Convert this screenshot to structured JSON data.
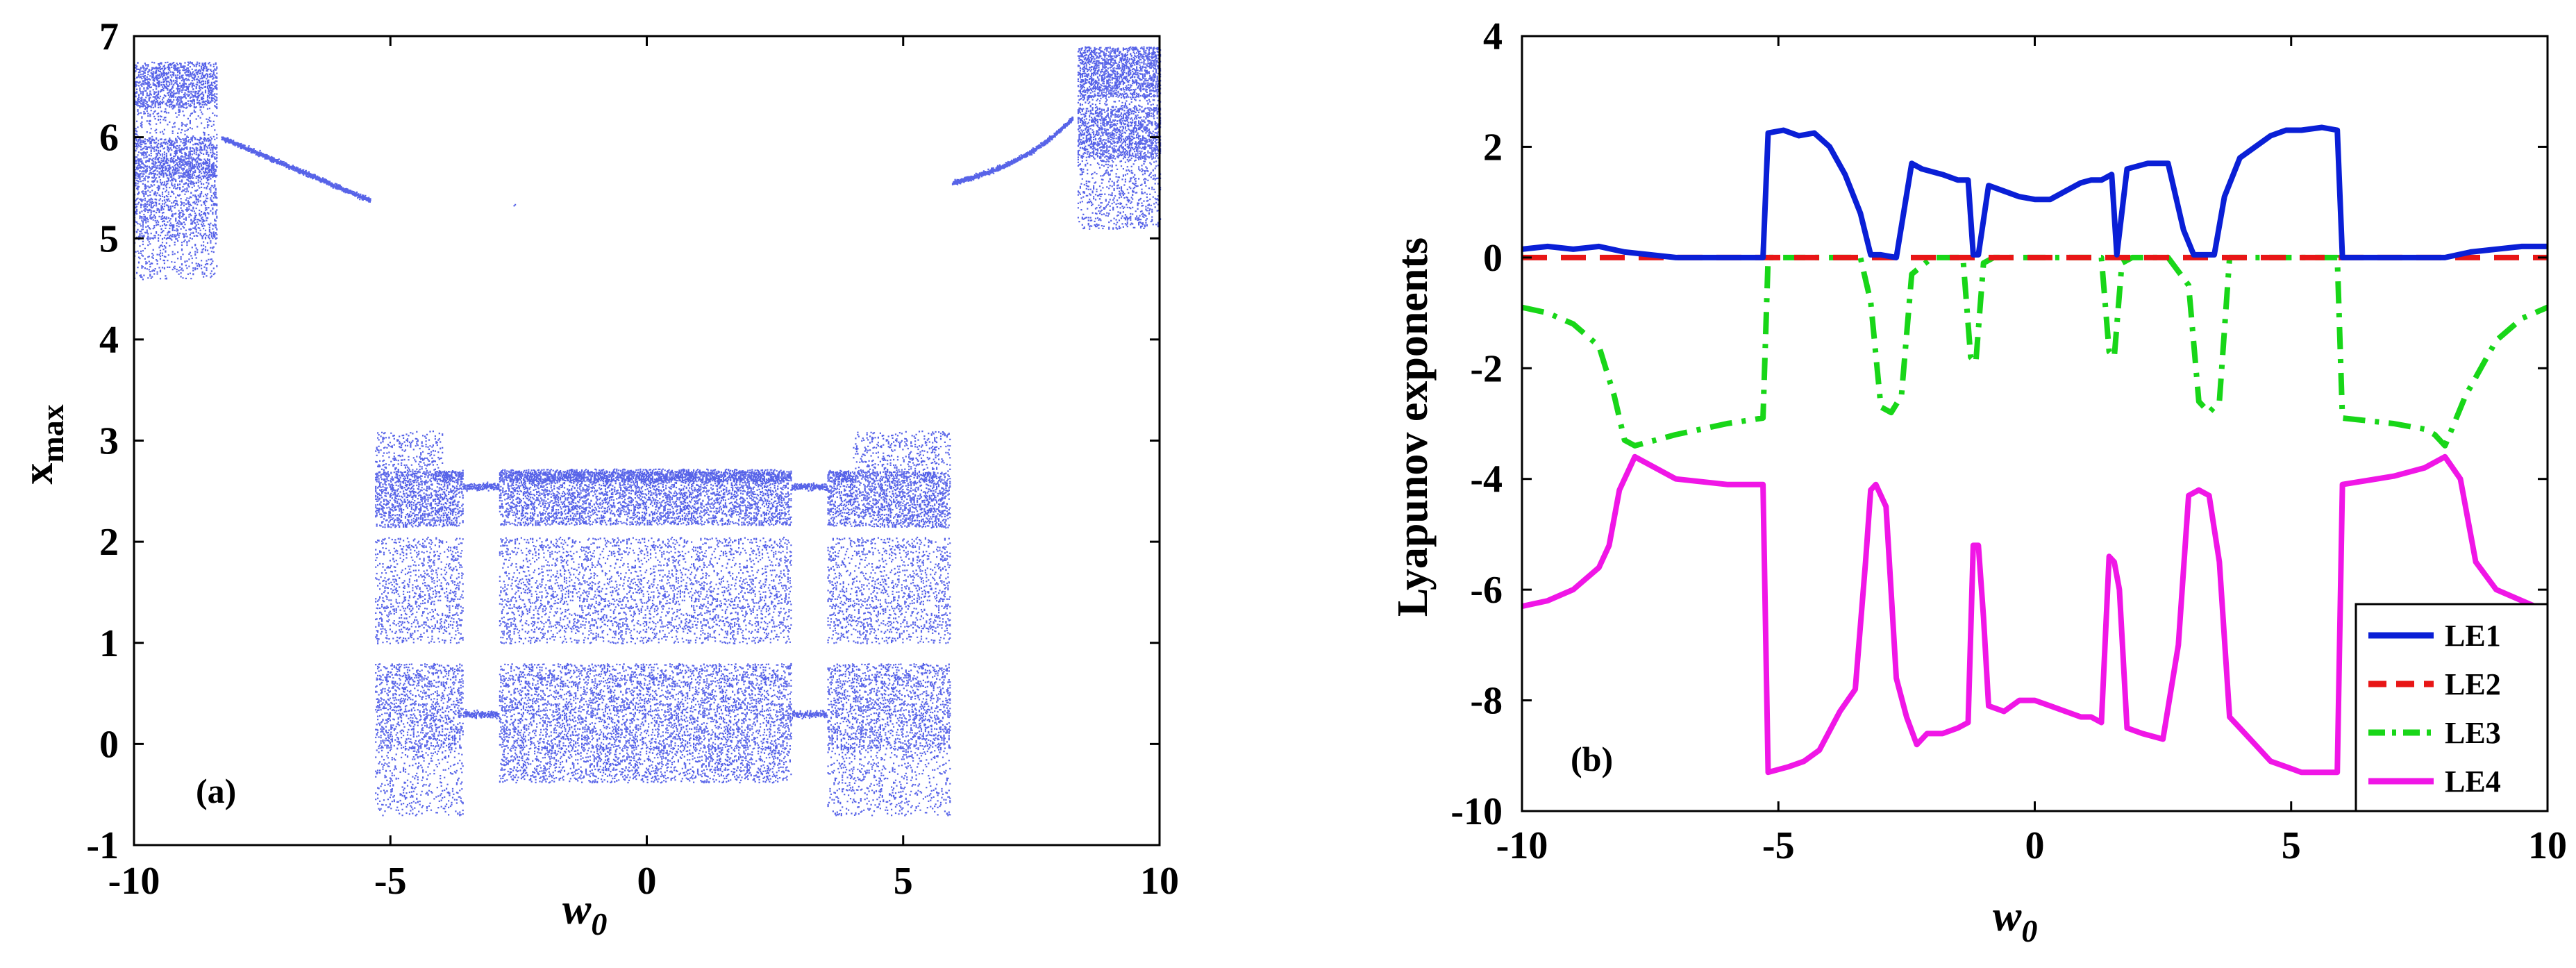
{
  "chart_data": [
    {
      "type": "scatter",
      "panel_label": "(a)",
      "title": "",
      "xlabel": "w",
      "xlabel_sub": "0",
      "ylabel": "x",
      "ylabel_sub": "max",
      "xlim": [
        -10,
        10
      ],
      "ylim": [
        -1,
        7
      ],
      "xticks": [
        -10,
        -5,
        0,
        5,
        10
      ],
      "yticks": [
        -1,
        0,
        1,
        2,
        3,
        4,
        5,
        6,
        7
      ],
      "xtick_labels": [
        "-10",
        "-5",
        "0",
        "5",
        "10"
      ],
      "ytick_labels": [
        "-1",
        "0",
        "1",
        "2",
        "3",
        "4",
        "5",
        "6",
        "7"
      ],
      "grid": false,
      "point_color": "#1f2fe0",
      "description_series": [
        {
          "name": "chaotic band left",
          "x_range": [
            -10,
            -8.4
          ],
          "y_range": [
            4.5,
            6.8
          ]
        },
        {
          "name": "periodic branch left",
          "x_range": [
            -8.2,
            -5.4
          ],
          "y_start": 6.0,
          "y_end": 5.4
        },
        {
          "name": "chaotic band right",
          "x_range": [
            8.4,
            10
          ],
          "y_range": [
            5.0,
            6.9
          ]
        },
        {
          "name": "periodic branch right",
          "x_range": [
            5.9,
            8.2
          ],
          "y_start": 5.55,
          "y_end": 6.1
        },
        {
          "name": "central bands",
          "x_range": [
            -5.3,
            5.9
          ],
          "y_range": [
            -0.7,
            3.1
          ]
        }
      ]
    },
    {
      "type": "line",
      "panel_label": "(b)",
      "title": "",
      "xlabel": "w",
      "xlabel_sub": "0",
      "ylabel": "Lyapunov exponents",
      "xlim": [
        -10,
        10
      ],
      "ylim": [
        -10,
        4
      ],
      "xticks": [
        -10,
        -5,
        0,
        5,
        10
      ],
      "yticks": [
        -10,
        -8,
        -6,
        -4,
        -2,
        0,
        2,
        4
      ],
      "xtick_labels": [
        "-10",
        "-5",
        "0",
        "5",
        "10"
      ],
      "ytick_labels": [
        "-10",
        "-8",
        "-6",
        "-4",
        "-2",
        "0",
        "2",
        "4"
      ],
      "grid": false,
      "legend_position": "bottom-right",
      "series": [
        {
          "name": "LE1",
          "color": "#0a1fd6",
          "style": "solid",
          "x": [
            -10,
            -9.5,
            -9,
            -8.5,
            -8,
            -7.5,
            -7,
            -6,
            -5.3,
            -5.2,
            -4.9,
            -4.6,
            -4.3,
            -4.0,
            -3.7,
            -3.4,
            -3.2,
            -3.0,
            -2.7,
            -2.4,
            -2.2,
            -1.8,
            -1.5,
            -1.3,
            -1.2,
            -1.1,
            -0.9,
            -0.6,
            -0.3,
            0,
            0.3,
            0.6,
            0.9,
            1.1,
            1.3,
            1.5,
            1.6,
            1.8,
            2.2,
            2.6,
            2.9,
            3.1,
            3.5,
            3.7,
            4.0,
            4.3,
            4.6,
            4.9,
            5.2,
            5.6,
            5.9,
            6.0,
            7,
            8,
            8.5,
            9,
            9.5,
            10
          ],
          "y": [
            0.15,
            0.2,
            0.15,
            0.2,
            0.1,
            0.05,
            0.0,
            0.0,
            0.0,
            2.25,
            2.3,
            2.2,
            2.25,
            2.0,
            1.5,
            0.8,
            0.05,
            0.05,
            0.0,
            1.7,
            1.6,
            1.5,
            1.4,
            1.4,
            0.05,
            0.05,
            1.3,
            1.2,
            1.1,
            1.05,
            1.05,
            1.2,
            1.35,
            1.4,
            1.4,
            1.5,
            0.05,
            1.6,
            1.7,
            1.7,
            0.5,
            0.05,
            0.05,
            1.1,
            1.8,
            2.0,
            2.2,
            2.3,
            2.3,
            2.35,
            2.3,
            0.0,
            0.0,
            0.0,
            0.1,
            0.15,
            0.2,
            0.2
          ]
        },
        {
          "name": "LE2",
          "color": "#e81616",
          "style": "dashed",
          "x": [
            -10,
            -5,
            0,
            5,
            10
          ],
          "y": [
            0.0,
            0.0,
            0.0,
            0.0,
            0.0
          ]
        },
        {
          "name": "LE3",
          "color": "#18d618",
          "style": "dashdot",
          "x": [
            -10,
            -9.5,
            -9,
            -8.5,
            -8.2,
            -8.0,
            -7.8,
            -7,
            -6,
            -5.3,
            -5.2,
            -4.0,
            -3.4,
            -3.2,
            -3.0,
            -2.8,
            -2.6,
            -2.4,
            -2.0,
            -1.4,
            -1.25,
            -1.15,
            -1.0,
            -0.8,
            0,
            0.8,
            1.3,
            1.45,
            1.55,
            1.7,
            1.9,
            2.6,
            3.0,
            3.2,
            3.4,
            3.6,
            3.8,
            5.8,
            5.9,
            6.0,
            7,
            7.6,
            7.8,
            8.0,
            8.4,
            9,
            9.5,
            10
          ],
          "y": [
            -0.9,
            -1.0,
            -1.2,
            -1.6,
            -2.5,
            -3.3,
            -3.4,
            -3.2,
            -3.0,
            -2.9,
            0.0,
            0.0,
            0.0,
            -0.8,
            -2.7,
            -2.8,
            -2.5,
            -0.3,
            0.0,
            0.0,
            -1.8,
            -1.9,
            -0.1,
            0.0,
            0.0,
            0.0,
            0.0,
            -1.7,
            -1.8,
            -0.1,
            0.0,
            0.0,
            -0.5,
            -2.6,
            -2.8,
            -2.6,
            0.0,
            0.0,
            0.0,
            -2.9,
            -3.0,
            -3.1,
            -3.2,
            -3.4,
            -2.5,
            -1.5,
            -1.1,
            -0.9
          ]
        },
        {
          "name": "LE4",
          "color": "#f016e6",
          "style": "solid",
          "x": [
            -10,
            -9.5,
            -9,
            -8.5,
            -8.3,
            -8.1,
            -7.8,
            -7.0,
            -6.0,
            -5.3,
            -5.2,
            -4.8,
            -4.5,
            -4.2,
            -3.8,
            -3.5,
            -3.3,
            -3.2,
            -3.1,
            -2.9,
            -2.7,
            -2.5,
            -2.3,
            -2.1,
            -1.8,
            -1.5,
            -1.3,
            -1.2,
            -1.1,
            -1.0,
            -0.9,
            -0.6,
            -0.3,
            0,
            0.3,
            0.6,
            0.9,
            1.1,
            1.3,
            1.45,
            1.55,
            1.65,
            1.8,
            2.1,
            2.5,
            2.8,
            3.0,
            3.2,
            3.4,
            3.6,
            3.8,
            4.0,
            4.3,
            4.6,
            4.9,
            5.2,
            5.5,
            5.8,
            5.9,
            6.0,
            7,
            7.6,
            7.8,
            8.0,
            8.3,
            8.6,
            9,
            9.5,
            10
          ],
          "y": [
            -6.3,
            -6.2,
            -6.0,
            -5.6,
            -5.2,
            -4.2,
            -3.6,
            -4.0,
            -4.1,
            -4.1,
            -9.3,
            -9.2,
            -9.1,
            -8.9,
            -8.2,
            -7.8,
            -5.5,
            -4.2,
            -4.1,
            -4.5,
            -7.6,
            -8.3,
            -8.8,
            -8.6,
            -8.6,
            -8.5,
            -8.4,
            -5.2,
            -5.2,
            -6.5,
            -8.1,
            -8.2,
            -8.0,
            -8.0,
            -8.1,
            -8.2,
            -8.3,
            -8.3,
            -8.4,
            -5.4,
            -5.5,
            -6.0,
            -8.5,
            -8.6,
            -8.7,
            -7.0,
            -4.3,
            -4.2,
            -4.3,
            -5.5,
            -8.3,
            -8.5,
            -8.8,
            -9.1,
            -9.2,
            -9.3,
            -9.3,
            -9.3,
            -9.3,
            -4.1,
            -3.95,
            -3.8,
            -3.7,
            -3.6,
            -4.0,
            -5.5,
            -6.0,
            -6.2,
            -6.4
          ]
        }
      ]
    }
  ]
}
